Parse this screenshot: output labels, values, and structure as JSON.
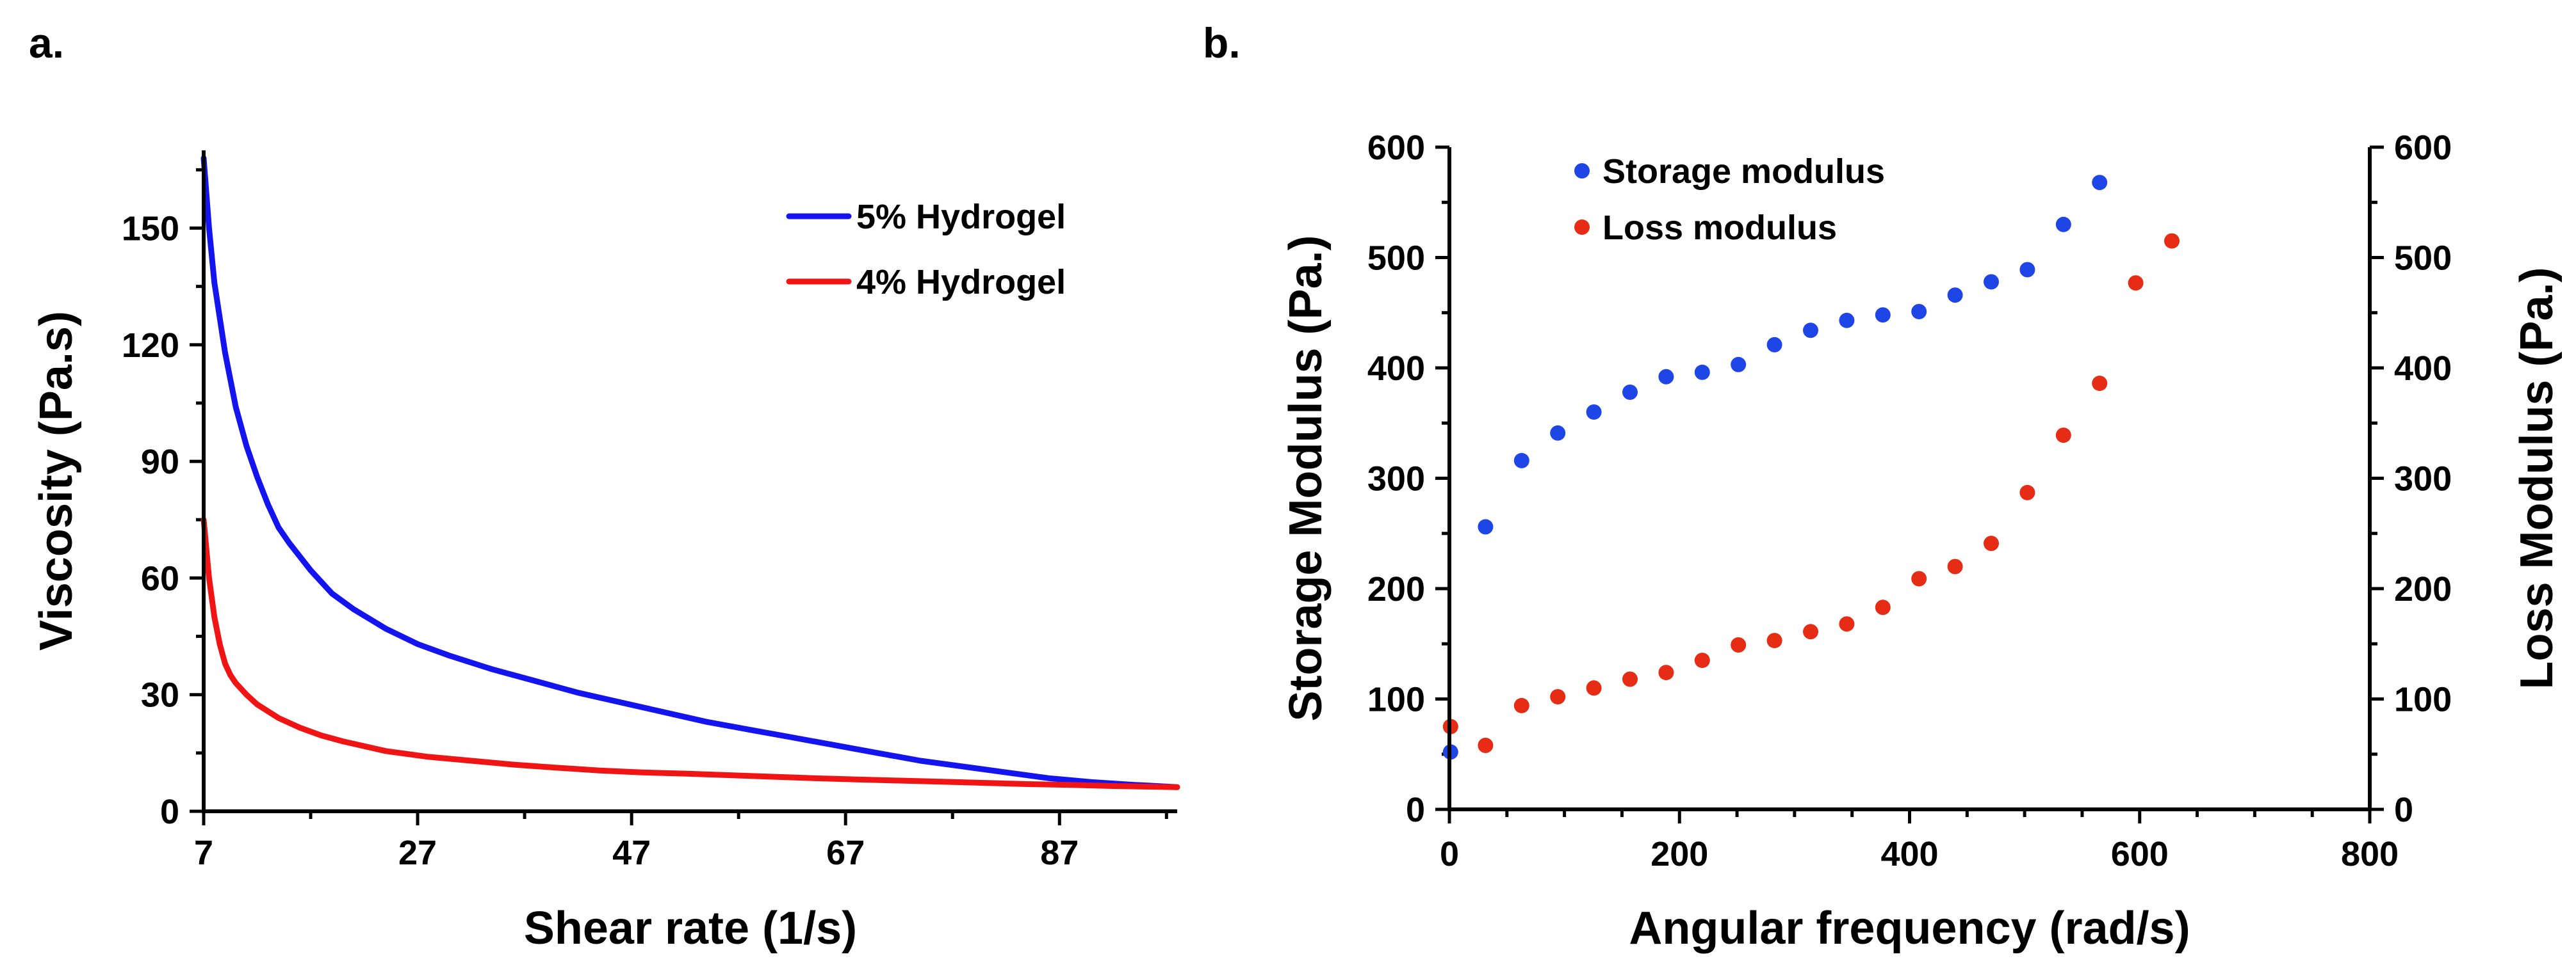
{
  "chart_data": [
    {
      "panel_label": "a.",
      "type": "line",
      "xlabel": "Shear rate (1/s)",
      "ylabel": "Viscosity (Pa.s)",
      "xlim": [
        7,
        98
      ],
      "ylim": [
        0,
        170
      ],
      "xticks": [
        7,
        27,
        47,
        67,
        87
      ],
      "yticks": [
        0,
        30,
        60,
        90,
        120,
        150
      ],
      "xtick_labels": [
        "7",
        "27",
        "47",
        "67",
        "87"
      ],
      "ytick_labels": [
        "0",
        "30",
        "60",
        "90",
        "120",
        "150"
      ],
      "legend_position": "top-right",
      "grid": false,
      "series": [
        {
          "name": "5% Hydrogel",
          "color": "#1414f0",
          "x": [
            7,
            7.5,
            8,
            9,
            10,
            11,
            12,
            13,
            14,
            15,
            17,
            19,
            21,
            24,
            27,
            30,
            34,
            38,
            42,
            46,
            50,
            54,
            58,
            62,
            66,
            70,
            74,
            78,
            82,
            86,
            90,
            94,
            98
          ],
          "y": [
            168,
            150,
            136,
            118,
            104,
            94,
            86,
            79,
            73,
            69,
            62,
            56,
            52,
            47,
            43,
            40,
            36.5,
            33.5,
            30.5,
            28,
            25.5,
            23,
            21,
            19,
            17,
            15,
            13,
            11.5,
            10,
            8.5,
            7.5,
            6.8,
            6.2
          ]
        },
        {
          "name": "4% Hydrogel",
          "color": "#f01414",
          "x": [
            7,
            7.5,
            8,
            8.5,
            9,
            9.5,
            10,
            11,
            12,
            14,
            16,
            18,
            20,
            24,
            28,
            32,
            36,
            40,
            44,
            48,
            52,
            56,
            60,
            64,
            68,
            72,
            76,
            80,
            84,
            88,
            92,
            98
          ],
          "y": [
            75,
            60,
            50,
            43,
            38,
            35,
            33,
            30,
            27.5,
            24,
            21.5,
            19.5,
            18,
            15.5,
            14,
            13,
            12,
            11.2,
            10.5,
            10,
            9.7,
            9.3,
            8.9,
            8.5,
            8.2,
            7.9,
            7.6,
            7.3,
            7,
            6.8,
            6.5,
            6.2
          ]
        }
      ]
    },
    {
      "panel_label": "b.",
      "type": "scatter",
      "xlabel": "Angular frequency (rad/s)",
      "ylabel": "Storage Modulus (Pa.)",
      "y2label": "Loss Modulus (Pa.)",
      "xlim": [
        0,
        800
      ],
      "ylim": [
        0,
        600
      ],
      "y2lim": [
        0,
        600
      ],
      "xticks": [
        0,
        200,
        400,
        600,
        800
      ],
      "yticks": [
        0,
        100,
        200,
        300,
        400,
        500,
        600
      ],
      "xtick_labels": [
        "0",
        "200",
        "400",
        "600",
        "800"
      ],
      "ytick_labels": [
        "0",
        "100",
        "200",
        "300",
        "400",
        "500",
        "600"
      ],
      "y2tick_labels": [
        "0",
        "100",
        "200",
        "300",
        "400",
        "500",
        "600"
      ],
      "legend_position": "top-left",
      "grid": false,
      "series": [
        {
          "name": "Storage modulus",
          "color": "#1e46e6",
          "x": [
            1,
            31.4,
            62.8,
            94.2,
            125.6,
            157,
            188.4,
            219.8,
            251.2,
            282.6,
            314,
            345.4,
            376.8,
            408.2,
            439.6,
            471,
            502.4,
            533.8,
            565.2
          ],
          "y": [
            52,
            256,
            316,
            341,
            360,
            378,
            392,
            396,
            403,
            421,
            434,
            443,
            448,
            451,
            466,
            478,
            489,
            530,
            568
          ]
        },
        {
          "name": "Loss modulus",
          "color": "#e62c14",
          "x": [
            1,
            31.4,
            62.8,
            94.2,
            125.6,
            157,
            188.4,
            219.8,
            251.2,
            282.6,
            314,
            345.4,
            376.8,
            408.2,
            439.6,
            471,
            502.4,
            533.8,
            565.2,
            596.6,
            628
          ],
          "y": [
            75,
            58,
            94,
            102,
            110,
            118,
            124,
            135,
            149,
            153,
            161,
            168,
            183,
            209,
            220,
            241,
            287,
            339,
            386,
            477,
            515
          ]
        }
      ]
    }
  ]
}
